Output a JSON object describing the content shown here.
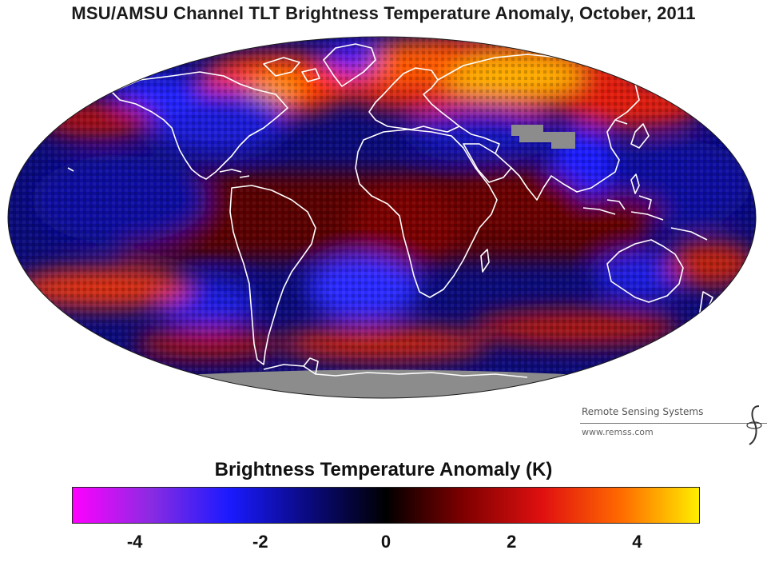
{
  "title": "MSU/AMSU Channel TLT Brightness Temperature Anomaly, October, 2011",
  "credit": {
    "organization": "Remote Sensing Systems",
    "url": "www.remss.com",
    "logo_icon": "rss-logo-icon"
  },
  "colorbar": {
    "title": "Brightness Temperature Anomaly (K)",
    "range": [
      -5,
      5
    ],
    "ticks": [
      "-4",
      "-2",
      "0",
      "2",
      "4"
    ],
    "tick_values": [
      -4,
      -2,
      0,
      2,
      4
    ],
    "colors": [
      "#ff00ff",
      "#8a2be2",
      "#1a1aff",
      "#0a0a80",
      "#000000",
      "#800000",
      "#e01010",
      "#ff6a00",
      "#ffee00"
    ]
  },
  "map": {
    "projection": "Mollweide",
    "missing_data_color": "#8c8c8c",
    "coastline_color": "#ffffff",
    "anomaly_regions": [
      {
        "name": "Northern Siberia / Arctic",
        "sign": "warm",
        "level": 4
      },
      {
        "name": "Greenland",
        "sign": "cold",
        "level": -3
      },
      {
        "name": "North Atlantic / Scandinavia",
        "sign": "warm",
        "level": 3
      },
      {
        "name": "Canada / North America",
        "sign": "cold",
        "level": -2
      },
      {
        "name": "Tropical Pacific",
        "sign": "cold",
        "level": -2
      },
      {
        "name": "Africa",
        "sign": "warm",
        "level": 1
      },
      {
        "name": "South Atlantic",
        "sign": "cold",
        "level": -3
      },
      {
        "name": "Australia",
        "sign": "cold",
        "level": -2
      },
      {
        "name": "Southern Ocean belt",
        "sign": "warm",
        "level": 2
      },
      {
        "name": "Antarctica",
        "sign": "missing",
        "level": null
      },
      {
        "name": "Tibetan Plateau",
        "sign": "missing",
        "level": null
      }
    ]
  }
}
